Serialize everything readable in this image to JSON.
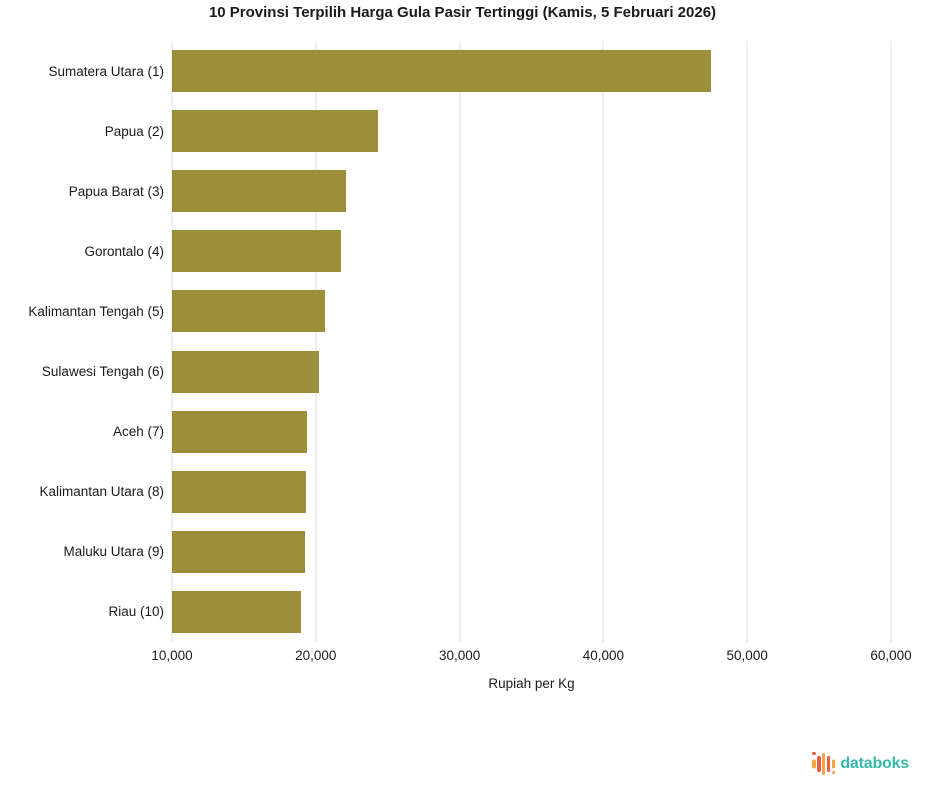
{
  "title": "10 Provinsi Terpilih Harga Gula Pasir Tertinggi (Kamis, 5 Februari 2026)",
  "chart_data": {
    "type": "bar",
    "orientation": "horizontal",
    "title": "10 Provinsi Terpilih Harga Gula Pasir Tertinggi (Kamis, 5 Februari 2026)",
    "categories": [
      "Sumatera Utara (1)",
      "Papua (2)",
      "Papua Barat (3)",
      "Gorontalo (4)",
      "Kalimantan Tengah (5)",
      "Sulawesi Tengah (6)",
      "Aceh (7)",
      "Kalimantan Utara (8)",
      "Maluku Utara (9)",
      "Riau (10)"
    ],
    "values": [
      47450,
      24300,
      22100,
      21750,
      20650,
      20250,
      19400,
      19300,
      19250,
      18950
    ],
    "xlabel": "Rupiah per Kg",
    "ylabel": "",
    "xlim": [
      10000,
      60000
    ],
    "xticks": [
      10000,
      20000,
      30000,
      40000,
      50000,
      60000
    ],
    "xtick_labels": [
      "10,000",
      "20,000",
      "30,000",
      "40,000",
      "50,000",
      "60,000"
    ],
    "grid": true,
    "legend": "none",
    "bar_color": "#9D8E3B"
  },
  "colors": {
    "bar": "#9D8E3B",
    "gridline": "#dddddd",
    "text": "#1a1a1a",
    "logo_text": "#35B9A9",
    "logo_orange": "#F5A33C",
    "logo_red": "#E85B44"
  },
  "footer": {
    "brand": "databoks"
  }
}
